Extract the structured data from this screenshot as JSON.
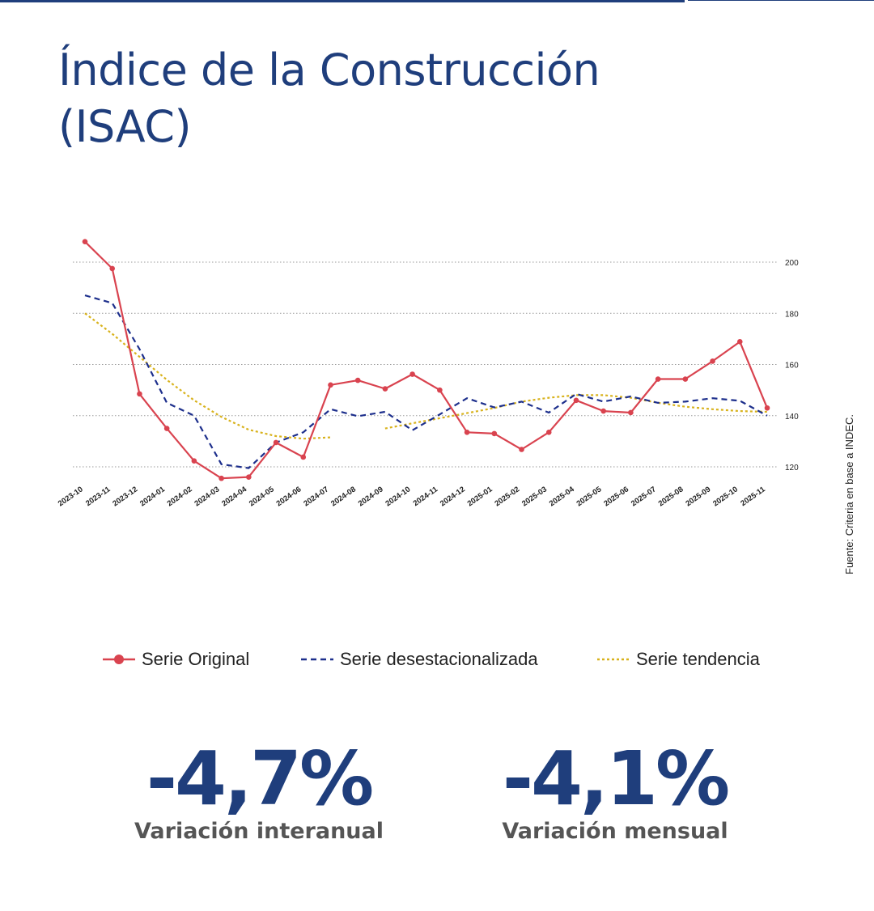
{
  "title": {
    "line1": "Índice de la Construcción",
    "line2": "(ISAC)"
  },
  "source": "Fuente: Criteria en base a INDEC.",
  "colors": {
    "brand": "#1f3e7c",
    "original": "#d9434f",
    "desestacionalizada": "#1d2f8c",
    "tendencia": "#d8b21c"
  },
  "chart_data": {
    "type": "line",
    "title": "Índice de la Construcción (ISAC)",
    "xlabel": "",
    "ylabel": "",
    "ylim": [
      110,
      210
    ],
    "yticks": [
      120,
      140,
      160,
      180,
      200
    ],
    "grid": "horizontal dotted",
    "y_axis_side": "right",
    "categories": [
      "2023-10",
      "2023-11",
      "2023-12",
      "2024-01",
      "2024-02",
      "2024-03",
      "2024-04",
      "2024-05",
      "2024-06",
      "2024-07",
      "2024-08",
      "2024-09",
      "2024-10",
      "2024-11",
      "2024-12",
      "2025-01",
      "2025-02",
      "2025-03",
      "2025-04",
      "2025-05",
      "2025-06",
      "2025-07",
      "2025-08",
      "2025-09",
      "2025-10",
      "2025-11"
    ],
    "series": [
      {
        "name": "Serie Original",
        "style": "solid-markers",
        "color": "#d9434f",
        "values": [
          208.0,
          197.5,
          148.5,
          135.0,
          122.3,
          115.5,
          116.0,
          129.5,
          123.8,
          152.0,
          153.8,
          150.5,
          156.2,
          150.0,
          133.5,
          133.0,
          126.8,
          133.5,
          146.0,
          141.8,
          141.2,
          154.3,
          154.3,
          161.3,
          168.9,
          143.0
        ]
      },
      {
        "name": "Serie desestacionalizada",
        "style": "dashed",
        "color": "#1d2f8c",
        "values": [
          187.0,
          184.0,
          166.0,
          145.0,
          140.0,
          121.0,
          119.5,
          129.5,
          133.5,
          142.5,
          139.8,
          141.5,
          134.3,
          140.5,
          146.8,
          143.2,
          145.5,
          141.2,
          148.5,
          145.5,
          147.5,
          145.0,
          145.5,
          146.8,
          145.8,
          140.0
        ]
      },
      {
        "name": "Serie tendencia",
        "style": "dotted",
        "color": "#d8b21c",
        "values": [
          180.0,
          172.0,
          163.0,
          154.0,
          146.0,
          139.5,
          134.5,
          132.0,
          131.0,
          131.5,
          null,
          135.0,
          137.0,
          139.0,
          141.0,
          143.0,
          145.5,
          147.0,
          148.0,
          148.0,
          147.0,
          145.0,
          143.5,
          142.5,
          141.8,
          141.5
        ]
      }
    ]
  },
  "kpis": [
    {
      "value": "-4,7%",
      "label": "Variación interanual"
    },
    {
      "value": "-4,1%",
      "label": "Variación mensual"
    }
  ]
}
